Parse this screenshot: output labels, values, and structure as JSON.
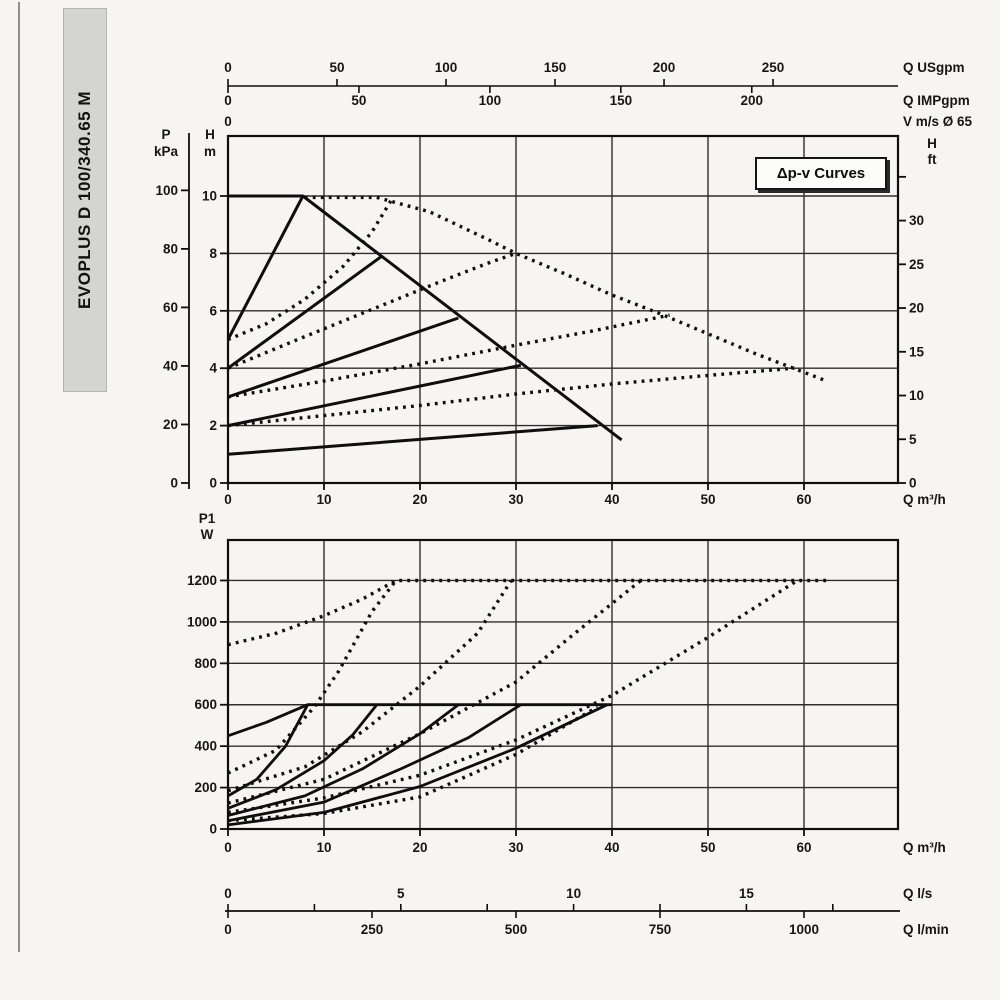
{
  "page": {
    "background": "#f6f5f2",
    "ink": "#0e0e0e",
    "grid_color": "#2e2e2e"
  },
  "sidebar": {
    "model": "EVOPLUS D 100/340.65 M"
  },
  "badge": {
    "label": "Δp-v Curves"
  },
  "chart_data": [
    {
      "id": "head_chart",
      "type": "line",
      "title": "Head / flow curves (Δp-v proportional pressure)",
      "xlabel": "Q m³/h",
      "x_ticks": [
        0,
        10,
        20,
        30,
        40,
        50,
        60
      ],
      "x_max": 69.8,
      "aux_top_axes": [
        {
          "name": "usgpm",
          "label": "Q USgpm",
          "ticks": [
            0,
            50,
            100,
            150,
            200,
            250
          ],
          "m3h_per_unit": 0.2271,
          "side": "above"
        },
        {
          "name": "impgpm",
          "label": "Q IMPgpm",
          "ticks": [
            0,
            50,
            100,
            150,
            200
          ],
          "m3h_per_unit": 0.2728,
          "side": "below"
        },
        {
          "name": "velocity",
          "label": "V m/s Ø 65",
          "ticks": [
            0
          ],
          "m3h_per_unit": 1,
          "side": "floating"
        }
      ],
      "left_axis_secondary": {
        "label_lines": [
          "P",
          "kPa"
        ],
        "ticks": [
          0,
          20,
          40,
          60,
          80,
          100
        ],
        "m_per_unit": 0.10197
      },
      "left_axis": {
        "label_lines": [
          "H",
          "m"
        ],
        "ticks": [
          0,
          2,
          4,
          6,
          8,
          10
        ],
        "y_max": 12.1
      },
      "right_axis": {
        "label_lines": [
          "H",
          "ft"
        ],
        "ticks": [
          0,
          5,
          10,
          15,
          20,
          25,
          30
        ],
        "extra_unlabeled_tick": 35,
        "m_per_unit": 0.3048
      },
      "grid": true,
      "series": [
        {
          "name": "max-speed-curve",
          "style": "solid",
          "points": [
            [
              0,
              10
            ],
            [
              7.8,
              10
            ],
            [
              41,
              1.5
            ]
          ]
        },
        {
          "name": "dpv-setpoint-10m",
          "style": "solid",
          "points": [
            [
              0,
              5
            ],
            [
              7.8,
              10
            ]
          ]
        },
        {
          "name": "dpv-setpoint-8m",
          "style": "solid",
          "points": [
            [
              0,
              4
            ],
            [
              16,
              7.9
            ]
          ]
        },
        {
          "name": "dpv-setpoint-6m",
          "style": "solid",
          "points": [
            [
              0,
              3
            ],
            [
              24,
              5.75
            ]
          ]
        },
        {
          "name": "dpv-setpoint-4m",
          "style": "solid",
          "points": [
            [
              0,
              2
            ],
            [
              30.5,
              4.1
            ]
          ]
        },
        {
          "name": "dpv-setpoint-2m",
          "style": "solid",
          "points": [
            [
              0,
              1
            ],
            [
              38.5,
              2.0
            ]
          ]
        },
        {
          "name": "parallel-max-curve",
          "style": "dotted",
          "points": [
            [
              8,
              9.95
            ],
            [
              15.5,
              9.95
            ],
            [
              21,
              9.45
            ],
            [
              27,
              8.5
            ],
            [
              30,
              8.0
            ],
            [
              35,
              7.3
            ],
            [
              40,
              6.55
            ],
            [
              45,
              5.9
            ],
            [
              50,
              5.2
            ],
            [
              55,
              4.5
            ],
            [
              62,
              3.6
            ]
          ]
        },
        {
          "name": "parallel-dpv-10m",
          "style": "dotted",
          "points": [
            [
              0,
              5
            ],
            [
              4,
              5.55
            ],
            [
              8,
              6.4
            ],
            [
              12,
              7.55
            ],
            [
              15,
              8.75
            ],
            [
              17,
              9.85
            ]
          ]
        },
        {
          "name": "parallel-dpv-8m",
          "style": "dotted",
          "points": [
            [
              0,
              4
            ],
            [
              8,
              5.1
            ],
            [
              15,
              6.05
            ],
            [
              22,
              7.0
            ],
            [
              27,
              7.65
            ],
            [
              29.8,
              7.98
            ]
          ]
        },
        {
          "name": "parallel-dpv-6m",
          "style": "dotted",
          "points": [
            [
              0,
              3
            ],
            [
              10,
              3.55
            ],
            [
              20,
              4.15
            ],
            [
              30,
              4.8
            ],
            [
              38,
              5.3
            ],
            [
              46,
              5.85
            ]
          ]
        },
        {
          "name": "parallel-dpv-4m",
          "style": "dotted",
          "points": [
            [
              0,
              2
            ],
            [
              10,
              2.35
            ],
            [
              20,
              2.7
            ],
            [
              30,
              3.1
            ],
            [
              40,
              3.45
            ],
            [
              50,
              3.75
            ],
            [
              59,
              4.0
            ]
          ]
        }
      ]
    },
    {
      "id": "power_chart",
      "type": "line",
      "title": "Power input P1 / flow curves",
      "xlabel": "Q m³/h",
      "x_ticks": [
        0,
        10,
        20,
        30,
        40,
        50,
        60
      ],
      "x_max": 69.8,
      "left_axis": {
        "label_lines": [
          "P1",
          "W"
        ],
        "ticks": [
          0,
          200,
          400,
          600,
          800,
          1000,
          1200
        ],
        "y_max": 1400
      },
      "aux_bottom_axes": [
        {
          "name": "liters-per-second",
          "label": "Q l/s",
          "ticks": [
            0,
            5,
            10,
            15
          ],
          "minor_ticks": [
            2.5,
            7.5,
            12.5,
            17.5
          ],
          "m3h_per_unit": 3.6,
          "side": "above"
        },
        {
          "name": "liters-per-minute",
          "label": "Q l/min",
          "ticks": [
            0,
            250,
            500,
            750,
            1000
          ],
          "minor_ticks": [],
          "m3h_per_unit": 0.06,
          "side": "below"
        }
      ],
      "grid": true,
      "series": [
        {
          "name": "power-max-speed",
          "style": "solid",
          "points": [
            [
              0,
              450
            ],
            [
              4,
              515
            ],
            [
              8.3,
              600
            ],
            [
              40,
              600
            ]
          ]
        },
        {
          "name": "power-setpoint-10m",
          "style": "solid",
          "points": [
            [
              0,
              160
            ],
            [
              3,
              240
            ],
            [
              6,
              400
            ],
            [
              8.3,
              600
            ]
          ]
        },
        {
          "name": "power-setpoint-8m",
          "style": "solid",
          "points": [
            [
              0,
              100
            ],
            [
              5,
              190
            ],
            [
              10,
              330
            ],
            [
              13,
              455
            ],
            [
              15.5,
              600
            ]
          ]
        },
        {
          "name": "power-setpoint-6m",
          "style": "solid",
          "points": [
            [
              0,
              65
            ],
            [
              8,
              160
            ],
            [
              14,
              290
            ],
            [
              20,
              460
            ],
            [
              24,
              600
            ]
          ]
        },
        {
          "name": "power-setpoint-4m",
          "style": "solid",
          "points": [
            [
              0,
              40
            ],
            [
              10,
              130
            ],
            [
              18,
              290
            ],
            [
              25,
              440
            ],
            [
              30.5,
              600
            ]
          ]
        },
        {
          "name": "power-setpoint-2m",
          "style": "solid",
          "points": [
            [
              0,
              20
            ],
            [
              10,
              80
            ],
            [
              20,
              205
            ],
            [
              30,
              390
            ],
            [
              39.5,
              600
            ]
          ]
        },
        {
          "name": "power-parallel-max",
          "style": "dotted",
          "points": [
            [
              0,
              890
            ],
            [
              5,
              945
            ],
            [
              10,
              1030
            ],
            [
              14,
              1110
            ],
            [
              17.5,
              1200
            ],
            [
              62.4,
              1200
            ]
          ]
        },
        {
          "name": "power-parallel-10m",
          "style": "dotted",
          "points": [
            [
              0,
              270
            ],
            [
              5,
              380
            ],
            [
              9,
              590
            ],
            [
              11.5,
              760
            ],
            [
              15,
              1050
            ],
            [
              17.5,
              1200
            ]
          ]
        },
        {
          "name": "power-parallel-8m",
          "style": "dotted",
          "points": [
            [
              0,
              185
            ],
            [
              8,
              300
            ],
            [
              14,
              470
            ],
            [
              20,
              690
            ],
            [
              26,
              945
            ],
            [
              29.5,
              1200
            ]
          ]
        },
        {
          "name": "power-parallel-6m",
          "style": "dotted",
          "points": [
            [
              0,
              125
            ],
            [
              10,
              240
            ],
            [
              20,
              460
            ],
            [
              30,
              710
            ],
            [
              36,
              940
            ],
            [
              43,
              1200
            ]
          ]
        },
        {
          "name": "power-parallel-4m",
          "style": "dotted",
          "points": [
            [
              0,
              80
            ],
            [
              10,
              150
            ],
            [
              20,
              260
            ],
            [
              30,
              430
            ],
            [
              40,
              645
            ],
            [
              50,
              925
            ],
            [
              59.3,
              1200
            ]
          ]
        },
        {
          "name": "power-parallel-2m",
          "style": "dotted",
          "points": [
            [
              0,
              40
            ],
            [
              10,
              75
            ],
            [
              20,
              155
            ],
            [
              30,
              360
            ],
            [
              38.5,
              590
            ]
          ]
        }
      ]
    }
  ]
}
